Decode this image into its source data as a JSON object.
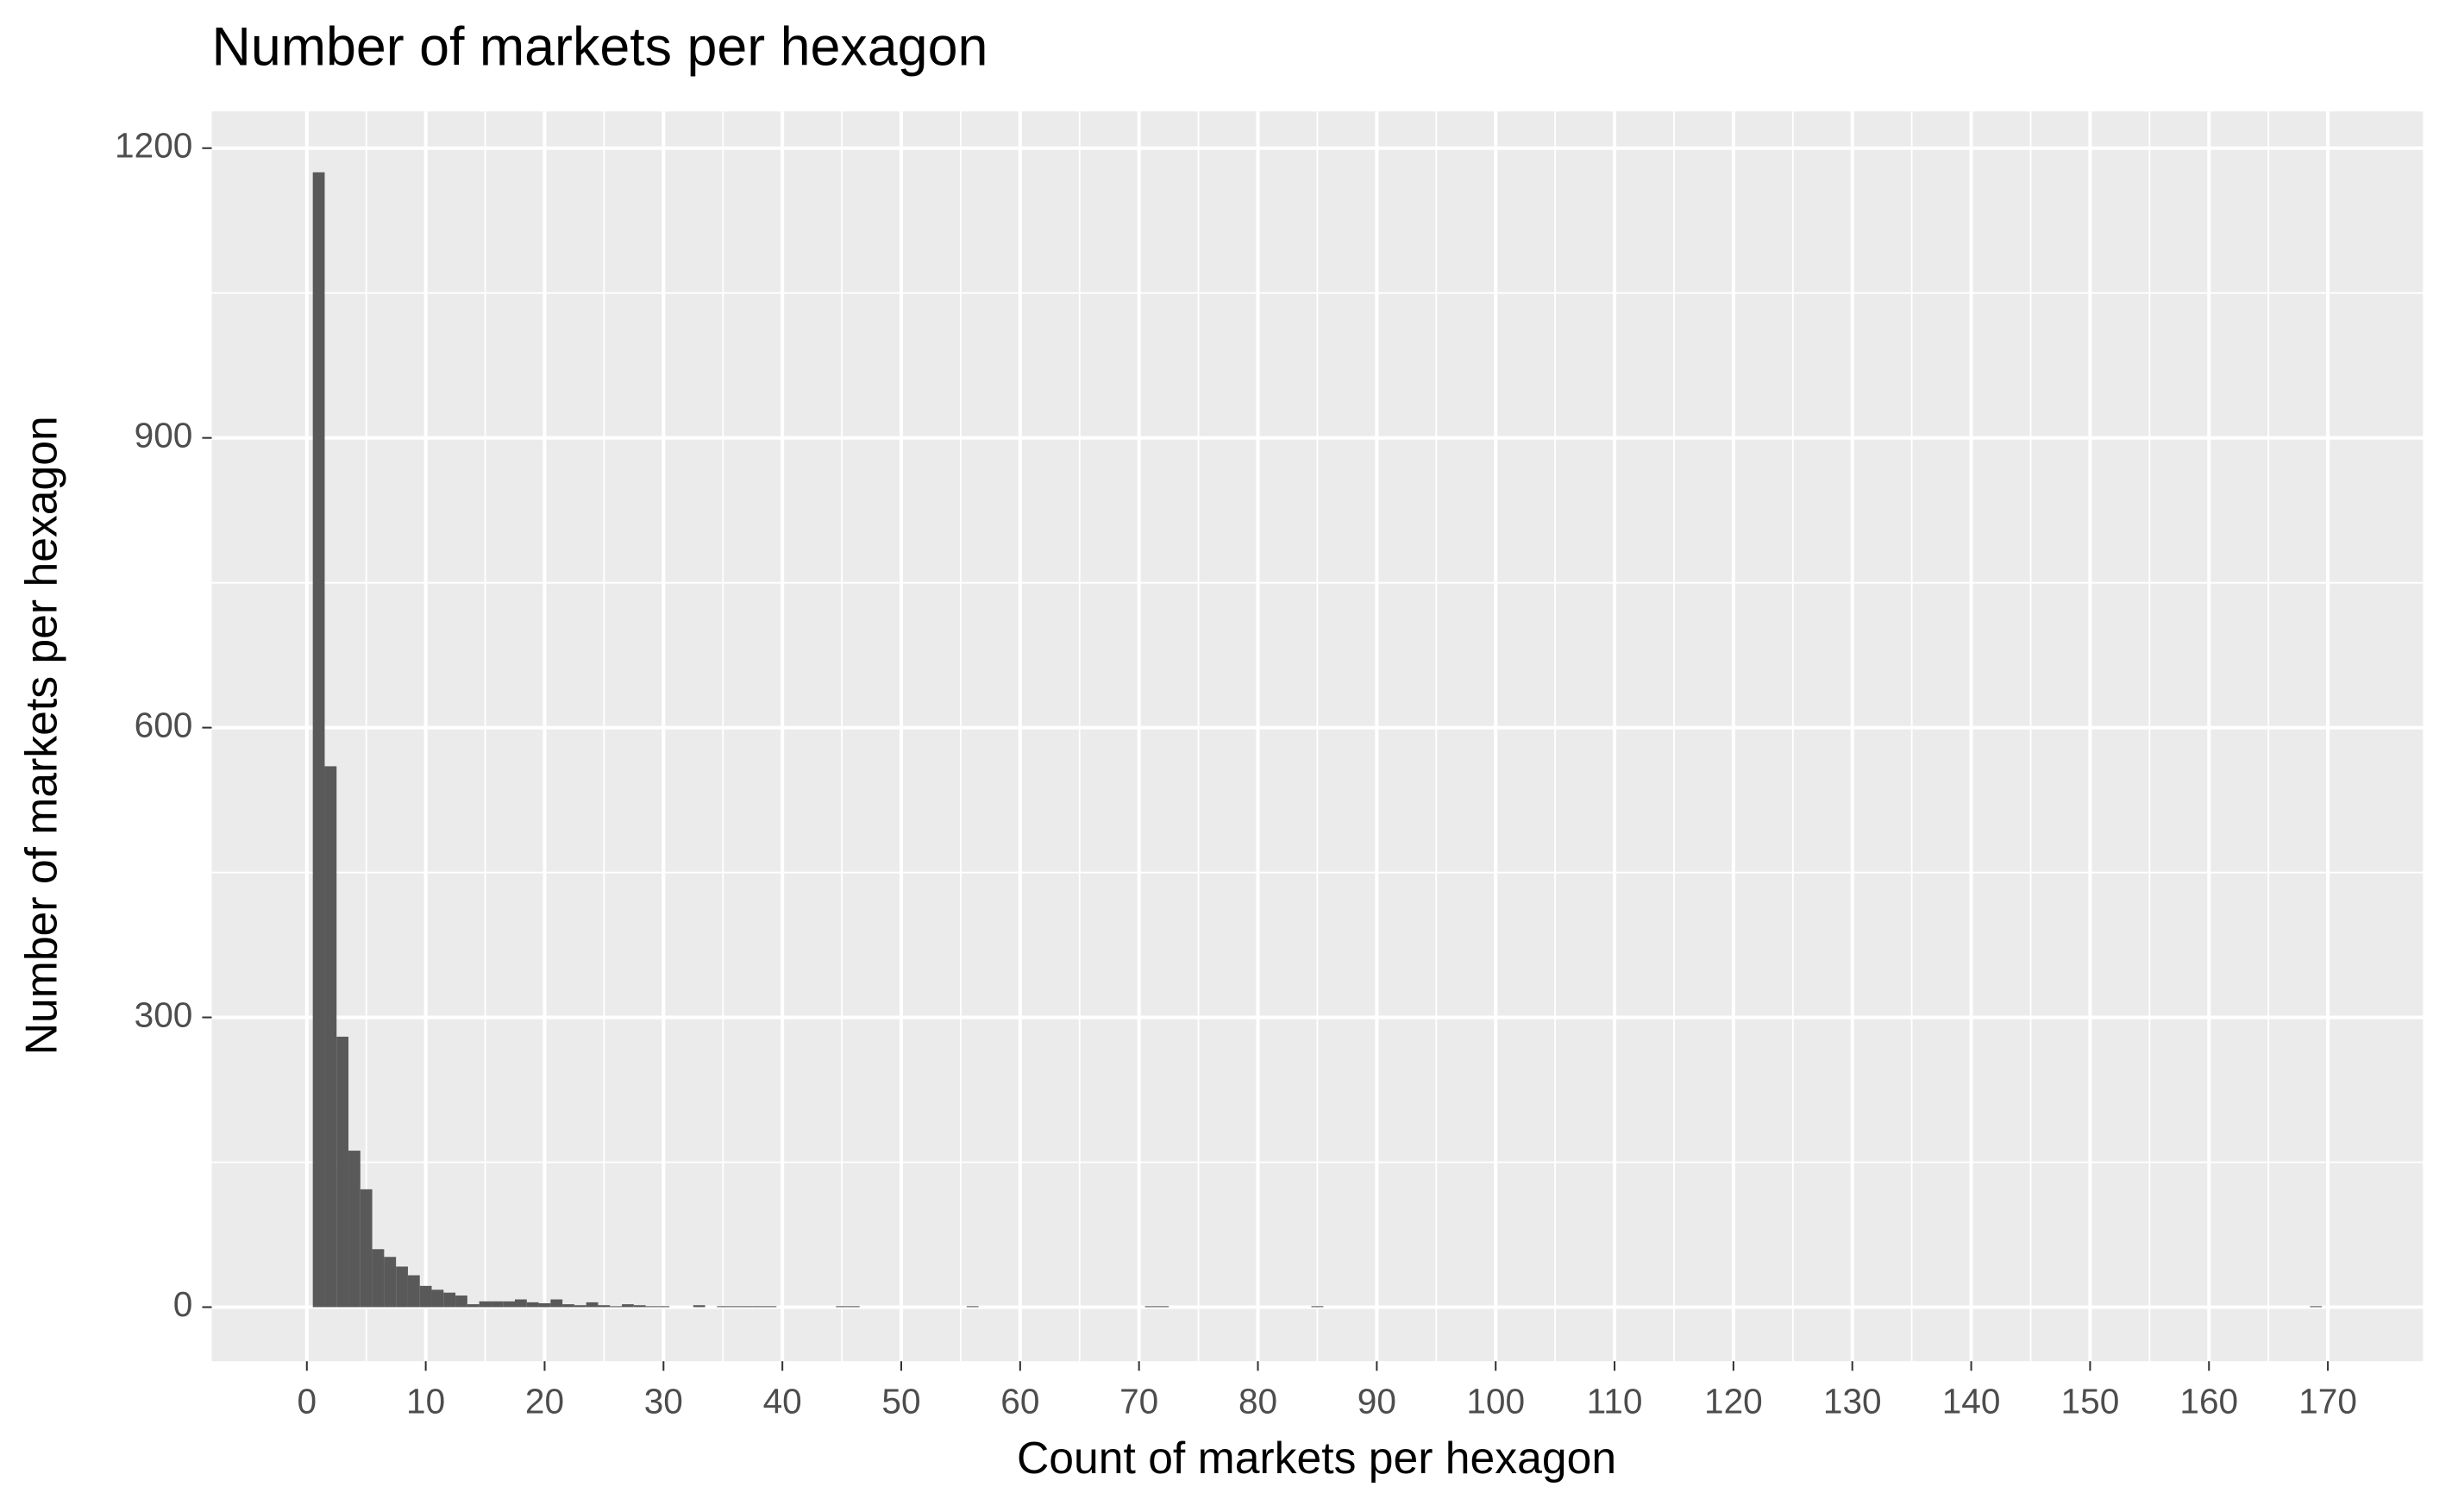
{
  "chart_data": {
    "type": "histogram",
    "title": "Number of markets per hexagon",
    "x_label": "Count of markets per hexagon",
    "y_label": "Number of markets per hexagon",
    "color": "#595959",
    "grid": true,
    "bins": [
      0.5,
      1.5,
      2.5,
      3.5,
      4.5,
      5.5,
      6.5,
      7.5,
      8.5,
      9.5,
      10.5,
      11.5,
      12.5,
      13.5,
      14.5,
      15.5,
      16.5,
      17.5,
      18.5,
      19.5,
      20.5,
      21.5,
      22.5,
      23.5,
      24.5,
      25.5,
      26.5,
      27.5,
      28.5,
      29.5,
      30.5,
      31.5,
      32.5,
      33.5,
      34.5,
      35.5,
      36.5,
      37.5,
      38.5,
      39.5,
      40.5,
      41.5,
      42.5,
      43.5,
      44.5,
      45.5,
      46.5,
      47.5,
      48.5,
      49.5,
      50.5,
      51.5,
      52.5,
      53.5,
      54.5,
      55.5,
      56.5,
      57.5,
      58.5,
      59.5,
      60.5,
      61.5,
      62.5,
      63.5,
      64.5,
      65.5,
      66.5,
      67.5,
      68.5,
      69.5,
      70.5,
      71.5,
      72.5,
      73.5,
      74.5,
      75.5,
      76.5,
      77.5,
      78.5,
      79.5,
      80.5,
      81.5,
      82.5,
      83.5,
      84.5,
      85.5,
      86.5,
      87.5,
      88.5,
      89.5,
      90.5,
      91.5,
      92.5,
      93.5,
      94.5,
      95.5,
      96.5,
      97.5,
      98.5,
      99.5,
      100.5,
      101.5,
      102.5,
      103.5,
      104.5,
      105.5,
      106.5,
      107.5,
      108.5,
      109.5,
      110.5,
      111.5,
      112.5,
      113.5,
      114.5,
      115.5,
      116.5,
      117.5,
      118.5,
      119.5,
      120.5,
      121.5,
      122.5,
      123.5,
      124.5,
      125.5,
      126.5,
      127.5,
      128.5,
      129.5,
      130.5,
      131.5,
      132.5,
      133.5,
      134.5,
      135.5,
      136.5,
      137.5,
      138.5,
      139.5,
      140.5,
      141.5,
      142.5,
      143.5,
      144.5,
      145.5,
      146.5,
      147.5,
      148.5,
      149.5,
      150.5,
      151.5,
      152.5,
      153.5,
      154.5,
      155.5,
      156.5,
      157.5,
      158.5,
      159.5,
      160.5,
      161.5,
      162.5,
      163.5,
      164.5,
      165.5,
      166.5,
      167.5,
      168.5,
      169.5
    ],
    "values": [
      1175,
      560,
      280,
      162,
      122,
      60,
      52,
      42,
      33,
      22,
      18,
      15,
      12,
      3,
      6,
      6,
      6,
      8,
      5,
      4,
      8,
      3,
      2,
      5,
      2,
      1,
      3,
      2,
      1,
      1,
      0,
      0,
      2,
      0,
      1,
      1,
      1,
      1,
      1,
      0,
      0,
      0,
      0,
      0,
      1,
      1,
      0,
      0,
      0,
      0,
      0,
      0,
      0,
      0,
      0,
      1,
      0,
      0,
      0,
      0,
      0,
      0,
      0,
      0,
      0,
      0,
      0,
      0,
      0,
      0,
      1,
      1,
      0,
      0,
      0,
      0,
      0,
      0,
      0,
      0,
      0,
      0,
      0,
      0,
      1,
      0,
      0,
      0,
      0,
      0,
      0,
      0,
      0,
      0,
      0,
      0,
      0,
      0,
      0,
      0,
      0,
      0,
      0,
      0,
      0,
      0,
      0,
      0,
      0,
      0,
      0,
      0,
      0,
      0,
      0,
      0,
      0,
      0,
      0,
      0,
      0,
      0,
      0,
      0,
      0,
      0,
      0,
      0,
      0,
      0,
      0,
      0,
      0,
      0,
      0,
      0,
      0,
      0,
      0,
      0,
      0,
      0,
      0,
      0,
      0,
      0,
      0,
      0,
      0,
      0,
      0,
      0,
      0,
      0,
      0,
      0,
      0,
      0,
      0,
      0,
      0,
      0,
      0,
      0,
      0,
      0,
      0,
      0,
      1
    ],
    "xlim": [
      -8,
      178
    ],
    "ylim": [
      -56,
      1238
    ],
    "xticks": [
      0,
      10,
      20,
      30,
      40,
      50,
      60,
      70,
      80,
      90,
      100,
      110,
      120,
      130,
      140,
      150,
      160,
      170
    ],
    "yticks": [
      0,
      300,
      600,
      900,
      1200
    ]
  }
}
